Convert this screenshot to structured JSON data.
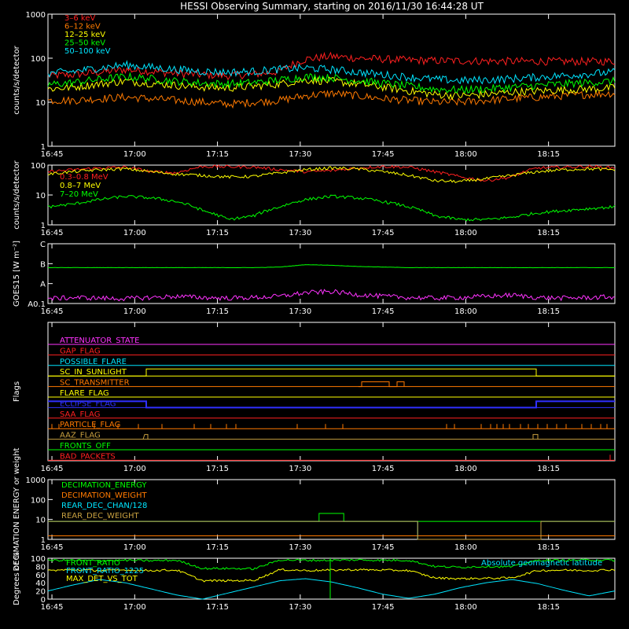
{
  "title": "HESSI Observing Summary, starting on 2016/11/30 16:44:28 UT",
  "time_ticks": [
    "16:45",
    "17:00",
    "17:15",
    "17:30",
    "17:45",
    "18:00",
    "18:15"
  ],
  "panels": {
    "p1": {
      "ylabel": "counts/s/detector",
      "yticks": [
        "1000",
        "100",
        "10",
        "1"
      ],
      "legend": [
        {
          "name": "3–6 keV",
          "color": "#ff2020"
        },
        {
          "name": "6–12 keV",
          "color": "#ff7a00"
        },
        {
          "name": "12–25 keV",
          "color": "#ffff00"
        },
        {
          "name": "25–50 keV",
          "color": "#00ff00"
        },
        {
          "name": "50–100 keV",
          "color": "#00e5ff"
        }
      ]
    },
    "p2": {
      "ylabel": "counts/s/detector",
      "yticks": [
        "100",
        "10",
        "1"
      ],
      "legend": [
        {
          "name": "0.3–0.8 MeV",
          "color": "#ff2020"
        },
        {
          "name": "0.8–7 MeV",
          "color": "#ffff00"
        },
        {
          "name": "7–20 MeV",
          "color": "#00ff00"
        }
      ]
    },
    "p3": {
      "ylabel": "GOES15 [W m⁻²]",
      "yticks": [
        "C",
        "B",
        "A",
        "A0.1"
      ]
    },
    "p4": {
      "ylabel": "Flags",
      "flags": [
        {
          "name": "ATTENUATOR_STATE",
          "color": "#ff33ff"
        },
        {
          "name": "GAP_FLAG",
          "color": "#ff2020"
        },
        {
          "name": "POSSIBLE_FLARE",
          "color": "#00e5ff"
        },
        {
          "name": "SC_IN_SUNLIGHT",
          "color": "#ffff00"
        },
        {
          "name": "SC_TRANSMITTER",
          "color": "#ff7a00"
        },
        {
          "name": "FLARE_FLAG",
          "color": "#ffff00"
        },
        {
          "name": "ECLIPSE_FLAG",
          "color": "#3030ff"
        },
        {
          "name": "SAA_FLAG",
          "color": "#ff2020"
        },
        {
          "name": "PARTICLE_FLAG",
          "color": "#ff7a00"
        },
        {
          "name": "AAZ_FLAG",
          "color": "#c8a040"
        },
        {
          "name": "FRONTS_OFF",
          "color": "#00ff00"
        },
        {
          "name": "BAD_PACKETS",
          "color": "#ff2020"
        }
      ]
    },
    "p5": {
      "ylabel": "DECIMATION ENERGY or weight",
      "yticks": [
        "1000",
        "100",
        "10",
        "1"
      ],
      "legend": [
        {
          "name": "DECIMATION_ENERGY",
          "color": "#00ff00"
        },
        {
          "name": "DECIMATION_WEIGHT",
          "color": "#ff7a00"
        },
        {
          "name": "REAR_DEC_CHAN/128",
          "color": "#00e5ff"
        },
        {
          "name": "REAR_DEC_WEIGHT",
          "color": "#c8a040"
        }
      ]
    },
    "p6": {
      "ylabel": "Degrees or %",
      "yticks": [
        "100",
        "80",
        "60",
        "40",
        "20",
        "0"
      ],
      "legend": [
        {
          "name": "FRONT_RATIO",
          "color": "#00ff00"
        },
        {
          "name": "FRONT_RATIO_1225",
          "color": "#00e5ff"
        },
        {
          "name": "MAX_DET_VS_TOT",
          "color": "#ffff00"
        }
      ],
      "right_label": "Absolute geomagnetic latitude"
    }
  },
  "chart_data": [
    {
      "type": "line",
      "title": "HESSI Observing Summary, starting on 2016/11/30 16:44:28 UT",
      "ylabel": "counts/s/detector",
      "yscale": "log",
      "ylim": [
        1,
        1000
      ],
      "xlim": [
        "16:44:28",
        "18:27"
      ],
      "series": [
        {
          "name": "3–6 keV",
          "values": [
            40,
            42,
            48,
            55,
            50,
            45,
            42,
            40,
            43,
            50,
            95,
            110,
            100,
            95,
            90,
            88,
            87,
            86,
            85,
            85,
            84,
            84,
            85
          ]
        },
        {
          "name": "6–12 keV",
          "values": [
            11,
            11,
            12,
            13,
            12,
            11,
            10,
            9,
            10,
            11,
            14,
            16,
            14,
            12,
            11,
            10,
            10,
            11,
            12,
            13,
            14,
            15,
            16
          ]
        },
        {
          "name": "12–25 keV",
          "values": [
            20,
            22,
            26,
            30,
            27,
            24,
            22,
            21,
            23,
            26,
            32,
            30,
            26,
            22,
            18,
            15,
            14,
            15,
            17,
            18,
            19,
            20,
            21
          ]
        },
        {
          "name": "25–50 keV",
          "values": [
            25,
            28,
            33,
            38,
            34,
            30,
            27,
            26,
            28,
            32,
            38,
            36,
            31,
            27,
            23,
            20,
            19,
            20,
            22,
            24,
            26,
            28,
            30
          ]
        },
        {
          "name": "50–100 keV",
          "values": [
            45,
            50,
            60,
            70,
            62,
            55,
            50,
            48,
            50,
            56,
            60,
            55,
            48,
            42,
            37,
            33,
            31,
            32,
            34,
            37,
            40,
            44,
            48
          ]
        }
      ]
    },
    {
      "type": "line",
      "ylabel": "counts/s/detector",
      "yscale": "log",
      "ylim": [
        1,
        100
      ],
      "series": [
        {
          "name": "0.3–0.8 MeV",
          "values": [
            60,
            70,
            80,
            85,
            60,
            55,
            90,
            88,
            86,
            70,
            60,
            65,
            80,
            90,
            85,
            60,
            40,
            30,
            40,
            80,
            85,
            90,
            80
          ]
        },
        {
          "name": "0.8–7 MeV",
          "values": [
            50,
            60,
            70,
            75,
            60,
            50,
            45,
            40,
            42,
            55,
            70,
            80,
            75,
            60,
            45,
            30,
            28,
            35,
            45,
            60,
            70,
            75,
            70
          ]
        },
        {
          "name": "7–20 MeV",
          "values": [
            4,
            5,
            7,
            9,
            8,
            6,
            3,
            1.5,
            2,
            4,
            7,
            9,
            8,
            6,
            4,
            2,
            1.5,
            1.5,
            1.8,
            2.5,
            3,
            3.5,
            4
          ]
        }
      ]
    },
    {
      "type": "line",
      "ylabel": "GOES15 [W m⁻²]",
      "yticks": [
        "C",
        "B",
        "A",
        "A0.1"
      ],
      "series": [
        {
          "name": "GOES high",
          "values": [
            0.6,
            0.6,
            0.6,
            0.6,
            0.6,
            0.6,
            0.6,
            0.6,
            0.6,
            0.61,
            0.65,
            0.64,
            0.62,
            0.61,
            0.6,
            0.6,
            0.6,
            0.6,
            0.6,
            0.6,
            0.6,
            0.6,
            0.6
          ]
        },
        {
          "name": "GOES low",
          "values": [
            0.08,
            0.1,
            0.09,
            0.08,
            0.1,
            0.12,
            0.1,
            0.09,
            0.1,
            0.12,
            0.18,
            0.2,
            0.15,
            0.12,
            0.1,
            0.09,
            0.1,
            0.12,
            0.14,
            0.1,
            0.09,
            0.1,
            0.11
          ]
        }
      ]
    },
    {
      "type": "line",
      "ylabel": "DECIMATION ENERGY or weight",
      "yscale": "log",
      "ylim": [
        1,
        1000
      ],
      "series": [
        {
          "name": "DECIMATION_ENERGY",
          "values": [
            8,
            8,
            8,
            8,
            8,
            8,
            8,
            8,
            8,
            8,
            8,
            20,
            8,
            8,
            8,
            8,
            8,
            8,
            8,
            8,
            8,
            8,
            8
          ]
        },
        {
          "name": "DECIMATION_WEIGHT",
          "values": [
            1.5,
            1.5,
            1.5,
            1.5,
            1.5,
            1.5,
            1.5,
            1.5,
            1.5,
            1.5,
            1.5,
            1.5,
            1.5,
            1.5,
            1.5,
            1.5,
            1.5,
            1.5,
            1.5,
            1.5,
            1.5,
            1.5,
            1.5
          ]
        },
        {
          "name": "REAR_DEC_CHAN/128",
          "values": [
            8,
            8,
            8,
            8,
            8,
            8,
            8,
            8,
            8,
            8,
            8,
            8,
            8,
            8,
            8,
            1,
            1,
            1,
            1,
            1,
            8,
            8,
            8
          ]
        },
        {
          "name": "REAR_DEC_WEIGHT",
          "values": [
            8,
            8,
            8,
            8,
            8,
            8,
            8,
            8,
            8,
            8,
            8,
            8,
            8,
            8,
            8,
            1,
            1,
            1,
            1,
            1,
            8,
            8,
            8
          ]
        }
      ]
    },
    {
      "type": "line",
      "ylabel": "Degrees or %",
      "ylim": [
        0,
        100
      ],
      "series": [
        {
          "name": "FRONT_RATIO",
          "values": [
            95,
            95,
            94,
            95,
            94,
            95,
            75,
            75,
            74,
            96,
            95,
            95,
            96,
            95,
            95,
            80,
            78,
            80,
            79,
            95,
            95,
            96,
            95
          ]
        },
        {
          "name": "MAX_DET_VS_TOT",
          "values": [
            70,
            72,
            70,
            71,
            70,
            71,
            45,
            45,
            46,
            72,
            70,
            71,
            72,
            71,
            70,
            52,
            50,
            51,
            52,
            70,
            71,
            70,
            72
          ]
        },
        {
          "name": "Absolute geomagnetic latitude",
          "values": [
            20,
            35,
            48,
            40,
            25,
            10,
            0,
            15,
            30,
            45,
            50,
            42,
            28,
            12,
            2,
            12,
            28,
            40,
            48,
            38,
            22,
            8,
            20
          ]
        }
      ]
    }
  ]
}
